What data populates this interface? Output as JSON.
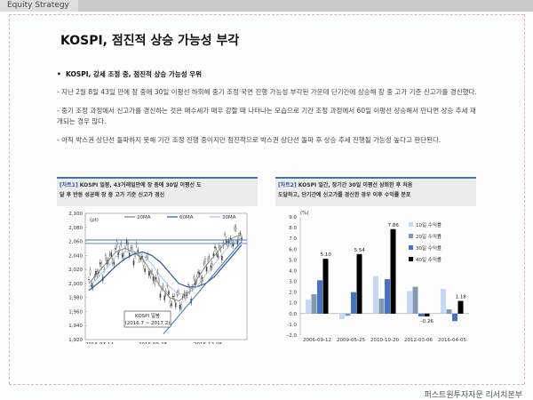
{
  "header": {
    "tab": "Equity Strategy"
  },
  "title": "KOSPI, 점진적 상승 가능성 부각",
  "bullet": "KOSPI, 강세 조정 중, 점진적 상승 가능성 우위",
  "paragraphs": [
    "- 지난 2월 8일 43일 만에 장 중에 30일 이평선 하회해 중기 조정 국면 진행 가능성 부각된 가운데 단기간에 상승해 장 중 고가 기준 신고가를 경신했다.",
    "- 중기 조정 과정에서 신고가를 경신하는 것은 매수세가 매우 강할 때 나타나는 모습으로 기간 조정 과정에서 60일 이평선 상승해서 만나면 상승 추세 재개되는 경우 많다.",
    "- 아직 박스권 상단선 돌파하지 못해 기간 조정 진행 중이지만 점진적으로 박스권 상단선 돌파 후 상승 추세 진행될 가능성 높다고 판단된다."
  ],
  "footer": "퍼스트원투자자문 리서치본부",
  "chart_left": {
    "header_tag": "[차트1]",
    "header_lines": [
      "KOSPI 일봉, 43거래일만에 장 중에 30일 이평선 도",
      "달 후 반등 성공해 장 중 고가 기준 신고가 경신"
    ],
    "unit": "(pt)",
    "legend": [
      "20MA",
      "60MA",
      "30MA"
    ],
    "box_label": [
      "KOSPI 일봉",
      "(2016.7 ~ 2017.2)"
    ],
    "y_ticks": [
      "2,100",
      "2,080",
      "2,060",
      "2,040",
      "2,020",
      "2,000",
      "1,980",
      "1,960",
      "1,940",
      "1,920"
    ],
    "x_ticks": [
      "2016-07-14",
      "2016-09-28",
      "2016-12-08"
    ],
    "colors": {
      "ma20": "#7f7f7f",
      "ma60": "#2f5597",
      "ma30": "#9dc3e6",
      "candle": "#404040",
      "trend": "#4472c4"
    }
  },
  "chart_right": {
    "header_tag": "[차트2]",
    "header_lines": [
      "KOSPI 일간, 장기간 30일 이평선 상회한 후 처음",
      "도달하고, 단기간에 신고가를 경신한 경우 이후 수익률 분포"
    ],
    "unit": "(%)",
    "legend": [
      "10일 수익률",
      "20일 수익률",
      "30일 수익률",
      "40일 수익률"
    ],
    "colors": [
      "#c5d9f1",
      "#8497b0",
      "#4472c4",
      "#000000"
    ]
  },
  "chart_data": [
    {
      "type": "line",
      "title": "KOSPI 일봉",
      "subtitle": "(2016.7 ~ 2017.2)",
      "ylabel": "(pt)",
      "ylim": [
        1920,
        2100
      ],
      "x_ticks": [
        "2016-07-14",
        "2016-09-28",
        "2016-12-08"
      ],
      "series": [
        {
          "name": "20MA",
          "values": [
            2000,
            2015,
            2030,
            2045,
            2050,
            2045,
            2035,
            2015,
            1995,
            1980,
            1975,
            1985,
            2005,
            2025,
            2040,
            2055,
            2065,
            2070
          ]
        },
        {
          "name": "60MA",
          "values": [
            1990,
            2000,
            2012,
            2025,
            2035,
            2042,
            2045,
            2040,
            2030,
            2015,
            2000,
            1995,
            1995,
            2000,
            2010,
            2025,
            2040,
            2055
          ]
        },
        {
          "name": "30MA",
          "values": [
            1995,
            2008,
            2022,
            2038,
            2045,
            2046,
            2040,
            2028,
            2010,
            1995,
            1985,
            1985,
            1995,
            2012,
            2028,
            2045,
            2058,
            2065
          ]
        }
      ]
    },
    {
      "type": "bar",
      "ylabel": "(%)",
      "ylim": [
        -2.0,
        9.0
      ],
      "categories": [
        "2006-09-12",
        "2009-05-25",
        "2010-10-20",
        "2012-03-06",
        "2016-04-05"
      ],
      "series": [
        {
          "name": "10일 수익률",
          "values": [
            1.3,
            -0.5,
            3.5,
            2.1,
            2.3
          ]
        },
        {
          "name": "20일 수익률",
          "values": [
            1.8,
            -0.2,
            1.4,
            2.5,
            0.4
          ]
        },
        {
          "name": "30일 수익률",
          "values": [
            3.1,
            2.0,
            3.2,
            -0.26,
            -0.7
          ]
        },
        {
          "name": "40일 수익률",
          "values": [
            5.1,
            5.54,
            7.86,
            -0.26,
            1.18
          ]
        }
      ],
      "data_labels": [
        "5.10",
        "5.54",
        "7.86",
        "-0.26",
        "1.18"
      ]
    }
  ]
}
